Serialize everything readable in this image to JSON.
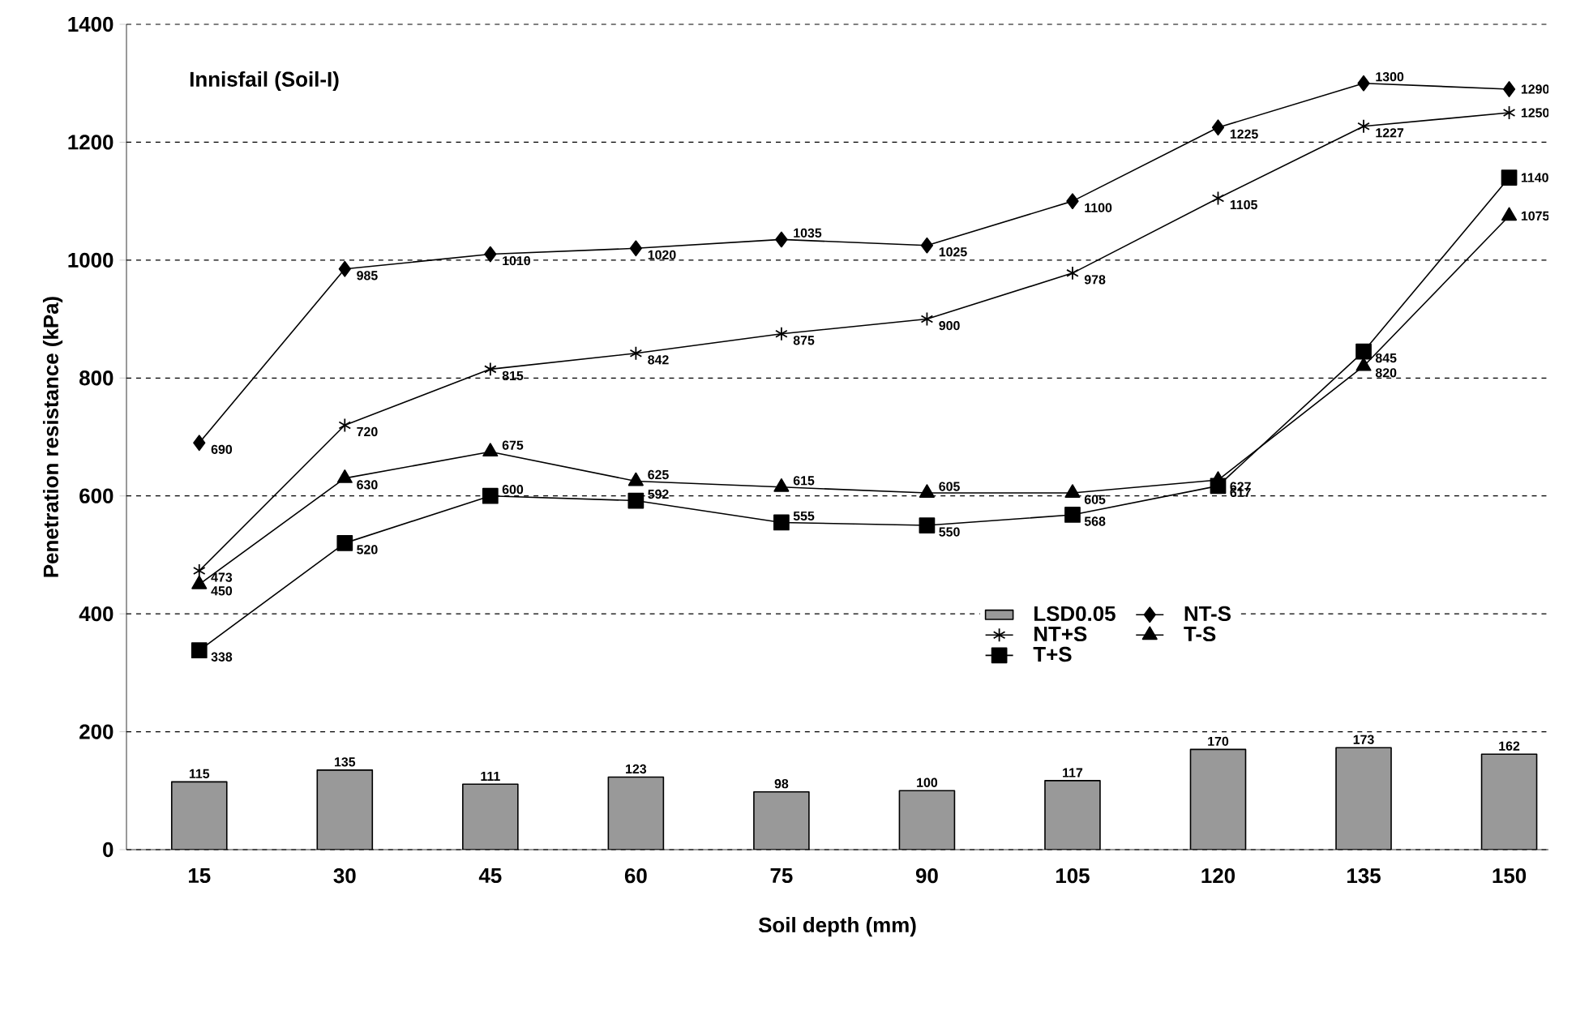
{
  "chart_data": {
    "type": "line",
    "title": "Innisfail (Soil-I)",
    "xlabel": "Soil depth (mm)",
    "ylabel": "Penetration resistance (kPa)",
    "categories": [
      "15",
      "30",
      "45",
      "60",
      "75",
      "90",
      "105",
      "120",
      "135",
      "150"
    ],
    "ylim": [
      0,
      1400
    ],
    "yticks": [
      0,
      200,
      400,
      600,
      800,
      1000,
      1200,
      1400
    ],
    "grid": "y",
    "legend": "bottom right",
    "data_labels": true,
    "series": [
      {
        "name": "LSD0.05",
        "type": "bar",
        "color": "#999999",
        "values": [
          115,
          135,
          111,
          123,
          98,
          100,
          117,
          170,
          173,
          162
        ]
      },
      {
        "name": "NT-S",
        "color": "#000000",
        "marker": "diamond",
        "values": [
          690,
          985,
          1010,
          1020,
          1035,
          1025,
          1100,
          1225,
          1300,
          1290
        ]
      },
      {
        "name": "NT+S",
        "color": "#000000",
        "marker": "cross",
        "values": [
          473,
          720,
          815,
          842,
          875,
          900,
          978,
          1105,
          1227,
          1250
        ]
      },
      {
        "name": "T-S",
        "color": "#000000",
        "marker": "triangle",
        "values": [
          450,
          630,
          675,
          625,
          615,
          605,
          605,
          627,
          820,
          1075
        ]
      },
      {
        "name": "T+S",
        "color": "#000000",
        "marker": "square",
        "values": [
          338,
          520,
          600,
          592,
          555,
          550,
          568,
          617,
          845,
          1140
        ]
      }
    ]
  }
}
